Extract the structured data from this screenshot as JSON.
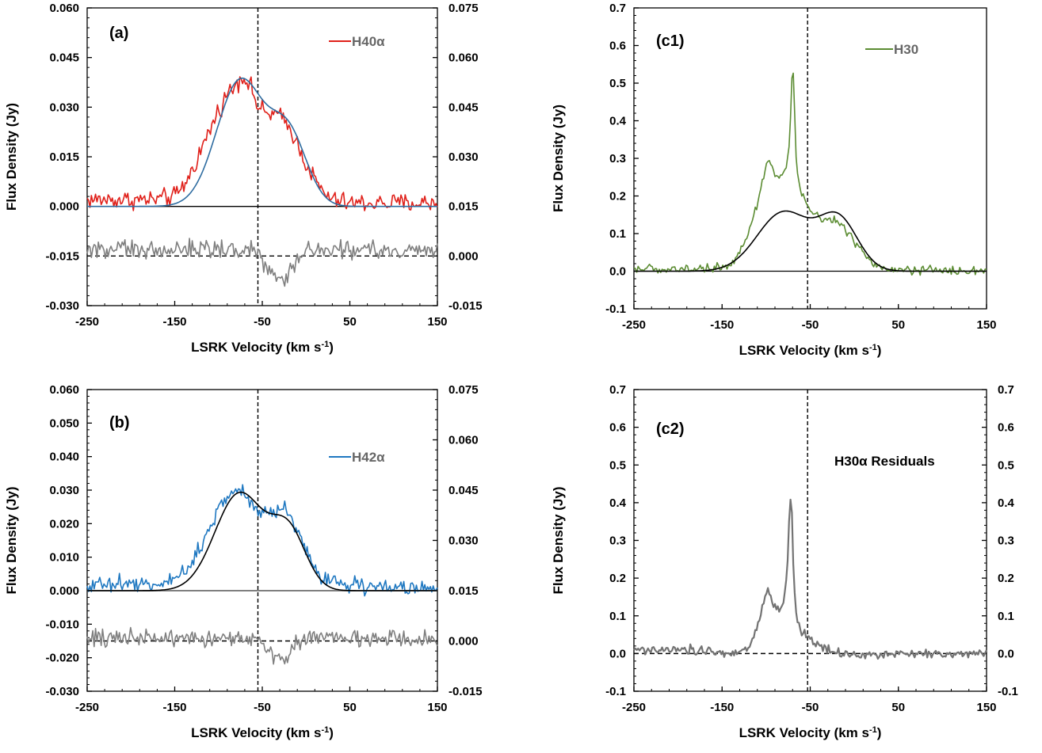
{
  "chart_data": [
    {
      "id": "a",
      "type": "line",
      "panel_label": "(a)",
      "xlabel": "LSRK Velocity (km s",
      "xlabel_sup": "-1",
      "xlabel_end": ")",
      "ylabel": "Flux Density (Jy)",
      "xlim": [
        -250,
        150
      ],
      "xticks": [
        -250,
        -150,
        -50,
        50,
        150
      ],
      "ylim": [
        -0.03,
        0.06
      ],
      "yticks": [
        "-0.030",
        "-0.015",
        "0.000",
        "0.015",
        "0.030",
        "0.045",
        "0.060"
      ],
      "y2lim": [
        -0.015,
        0.075
      ],
      "y2ticks": [
        "-0.015",
        "0.000",
        "0.015",
        "0.030",
        "0.045",
        "0.060",
        "0.075"
      ],
      "legend": "H40α",
      "legend_color": "#e0201a",
      "vline_x": -55,
      "hline_main": 0.0,
      "hline_resid": -0.015,
      "series": [
        {
          "name": "H40α",
          "color": "#e0201a",
          "kind": "noisy",
          "base_x": [
            -250,
            -230,
            -200,
            -175,
            -150,
            -140,
            -130,
            -120,
            -110,
            -100,
            -90,
            -80,
            -75,
            -70,
            -65,
            -60,
            -55,
            -50,
            -45,
            -40,
            -35,
            -30,
            -25,
            -20,
            -15,
            -10,
            -5,
            0,
            10,
            20,
            30,
            50,
            70,
            100,
            150
          ],
          "base_y": [
            0.002,
            0.002,
            0.002,
            0.002,
            0.003,
            0.006,
            0.011,
            0.017,
            0.023,
            0.029,
            0.034,
            0.037,
            0.039,
            0.039,
            0.037,
            0.034,
            0.03,
            0.029,
            0.028,
            0.028,
            0.028,
            0.027,
            0.026,
            0.024,
            0.022,
            0.019,
            0.016,
            0.013,
            0.008,
            0.004,
            0.002,
            0.001,
            0.001,
            0.001,
            0.001
          ],
          "noise": 0.0014
        },
        {
          "name": "",
          "color": "#2e6ca0",
          "kind": "gauss",
          "gauss": [
            [
              -75,
              0.038,
              27
            ],
            [
              -20,
              0.021,
              21
            ]
          ]
        },
        {
          "name": "",
          "color": "#7f7f7f",
          "kind": "noisy",
          "base_x": [
            -250,
            -60,
            -50,
            -45,
            -40,
            -35,
            -30,
            -25,
            -20,
            -15,
            -10,
            -5,
            0,
            10,
            150
          ],
          "base_y": [
            -0.013,
            -0.013,
            -0.016,
            -0.019,
            -0.02,
            -0.021,
            -0.022,
            -0.021,
            -0.02,
            -0.018,
            -0.016,
            -0.014,
            -0.013,
            -0.013,
            -0.014
          ],
          "noise": 0.0014
        }
      ]
    },
    {
      "id": "b",
      "type": "line",
      "panel_label": "(b)",
      "xlabel": "LSRK Velocity (km s",
      "xlabel_sup": "-1",
      "xlabel_end": ")",
      "ylabel": "Flux Density (Jy)",
      "xlim": [
        -250,
        150
      ],
      "xticks": [
        -250,
        -150,
        -50,
        50,
        150
      ],
      "ylim": [
        -0.03,
        0.06
      ],
      "yticks": [
        "-0.030",
        "-0.020",
        "-0.010",
        "0.000",
        "0.010",
        "0.020",
        "0.030",
        "0.040",
        "0.050",
        "0.060"
      ],
      "y2lim": [
        -0.015,
        0.075
      ],
      "y2ticks": [
        "-0.015",
        "0.000",
        "0.015",
        "0.030",
        "0.045",
        "0.060",
        "0.075"
      ],
      "legend": "H42α",
      "legend_color": "#1f78c1",
      "vline_x": -55,
      "hline_main": 0.0,
      "hline_resid": -0.015,
      "series": [
        {
          "name": "H42α",
          "color": "#1f78c1",
          "kind": "noisy",
          "base_x": [
            -250,
            -200,
            -175,
            -160,
            -150,
            -140,
            -130,
            -120,
            -110,
            -100,
            -90,
            -80,
            -75,
            -70,
            -65,
            -60,
            -55,
            -50,
            -45,
            -40,
            -35,
            -30,
            -25,
            -20,
            -15,
            -10,
            -5,
            0,
            10,
            20,
            30,
            50,
            80,
            150
          ],
          "base_y": [
            0.002,
            0.002,
            0.002,
            0.002,
            0.003,
            0.005,
            0.009,
            0.014,
            0.019,
            0.024,
            0.028,
            0.03,
            0.03,
            0.029,
            0.027,
            0.025,
            0.024,
            0.024,
            0.024,
            0.024,
            0.024,
            0.024,
            0.024,
            0.023,
            0.021,
            0.018,
            0.015,
            0.012,
            0.007,
            0.004,
            0.003,
            0.002,
            0.001,
            0.001
          ],
          "noise": 0.0012
        },
        {
          "name": "",
          "color": "#000000",
          "kind": "gauss",
          "gauss": [
            [
              -76,
              0.029,
              28
            ],
            [
              -20,
              0.017,
              20
            ]
          ]
        },
        {
          "name": "",
          "color": "#7f7f7f",
          "kind": "noisy",
          "base_x": [
            -250,
            -60,
            -50,
            -45,
            -40,
            -35,
            -30,
            -25,
            -20,
            -15,
            -10,
            -5,
            0,
            10,
            150
          ],
          "base_y": [
            -0.014,
            -0.014,
            -0.016,
            -0.018,
            -0.019,
            -0.02,
            -0.021,
            -0.02,
            -0.019,
            -0.017,
            -0.015,
            -0.014,
            -0.014,
            -0.014,
            -0.015
          ],
          "noise": 0.0013
        }
      ]
    },
    {
      "id": "c1",
      "type": "line",
      "panel_label": "(c1)",
      "xlabel": "LSRK Velocity (km s",
      "xlabel_sup": "-1",
      "xlabel_end": ")",
      "ylabel": "Flux Density (Jy)",
      "xlim": [
        -250,
        150
      ],
      "xticks": [
        -250,
        -150,
        -50,
        50,
        150
      ],
      "ylim": [
        -0.1,
        0.7
      ],
      "yticks": [
        "-0.1",
        "0.0",
        "0.1",
        "0.2",
        "0.3",
        "0.4",
        "0.5",
        "0.6",
        "0.7"
      ],
      "legend": "H30",
      "legend_color": "#5b8c32",
      "vline_x": -53,
      "hline_main": 0.0,
      "series": [
        {
          "name": "H30",
          "color": "#5b8c32",
          "kind": "noisy",
          "base_x": [
            -250,
            -200,
            -170,
            -150,
            -140,
            -130,
            -120,
            -110,
            -105,
            -100,
            -96,
            -92,
            -88,
            -84,
            -80,
            -77,
            -74,
            -72,
            -70,
            -68,
            -66,
            -64,
            -62,
            -58,
            -54,
            -50,
            -40,
            -30,
            -20,
            -10,
            0,
            10,
            20,
            30,
            50,
            100,
            150
          ],
          "base_y": [
            0.005,
            0.005,
            0.007,
            0.01,
            0.02,
            0.05,
            0.1,
            0.18,
            0.23,
            0.28,
            0.3,
            0.27,
            0.25,
            0.25,
            0.26,
            0.28,
            0.33,
            0.42,
            0.58,
            0.45,
            0.3,
            0.25,
            0.22,
            0.2,
            0.18,
            0.16,
            0.14,
            0.14,
            0.13,
            0.11,
            0.08,
            0.05,
            0.02,
            0.008,
            0.004,
            0.002,
            0.001
          ],
          "noise": 0.006
        },
        {
          "name": "",
          "color": "#000000",
          "kind": "gauss",
          "gauss": [
            [
              -80,
              0.157,
              30
            ],
            [
              -18,
              0.135,
              22
            ]
          ]
        }
      ]
    },
    {
      "id": "c2",
      "type": "line",
      "panel_label": "(c2)",
      "xlabel": "LSRK Velocity (km s",
      "xlabel_sup": "-1",
      "xlabel_end": ")",
      "ylabel": "Flux Density (Jy)",
      "xlim": [
        -250,
        150
      ],
      "xticks": [
        -250,
        -150,
        -50,
        50,
        150
      ],
      "ylim": [
        -0.1,
        0.7
      ],
      "yticks": [
        "-0.1",
        "0.0",
        "0.1",
        "0.2",
        "0.3",
        "0.4",
        "0.5",
        "0.6",
        "0.7"
      ],
      "y2lim": [
        -0.1,
        0.7
      ],
      "y2ticks": [
        "-0.1",
        "0.0",
        "0.1",
        "0.2",
        "0.3",
        "0.4",
        "0.5",
        "0.6",
        "0.7"
      ],
      "legend": "H30α Residuals",
      "legend_color": "#000000",
      "vline_x": -53,
      "hline_resid": 0.0,
      "series": [
        {
          "name": "",
          "color": "#737373",
          "kind": "noisy",
          "base_x": [
            -250,
            -200,
            -160,
            -140,
            -130,
            -120,
            -110,
            -104,
            -100,
            -96,
            -92,
            -88,
            -84,
            -80,
            -76,
            -73,
            -71,
            -69,
            -67,
            -64,
            -60,
            -55,
            -50,
            -40,
            -20,
            0,
            50,
            150
          ],
          "base_y": [
            0.01,
            0.01,
            0.005,
            -0.005,
            0.0,
            0.02,
            0.07,
            0.13,
            0.17,
            0.16,
            0.13,
            0.12,
            0.12,
            0.13,
            0.22,
            0.42,
            0.38,
            0.22,
            0.12,
            0.08,
            0.06,
            0.05,
            0.04,
            0.02,
            0.0,
            -0.005,
            0.0,
            0.0
          ],
          "noise": 0.006,
          "width": 2.2
        }
      ]
    }
  ]
}
